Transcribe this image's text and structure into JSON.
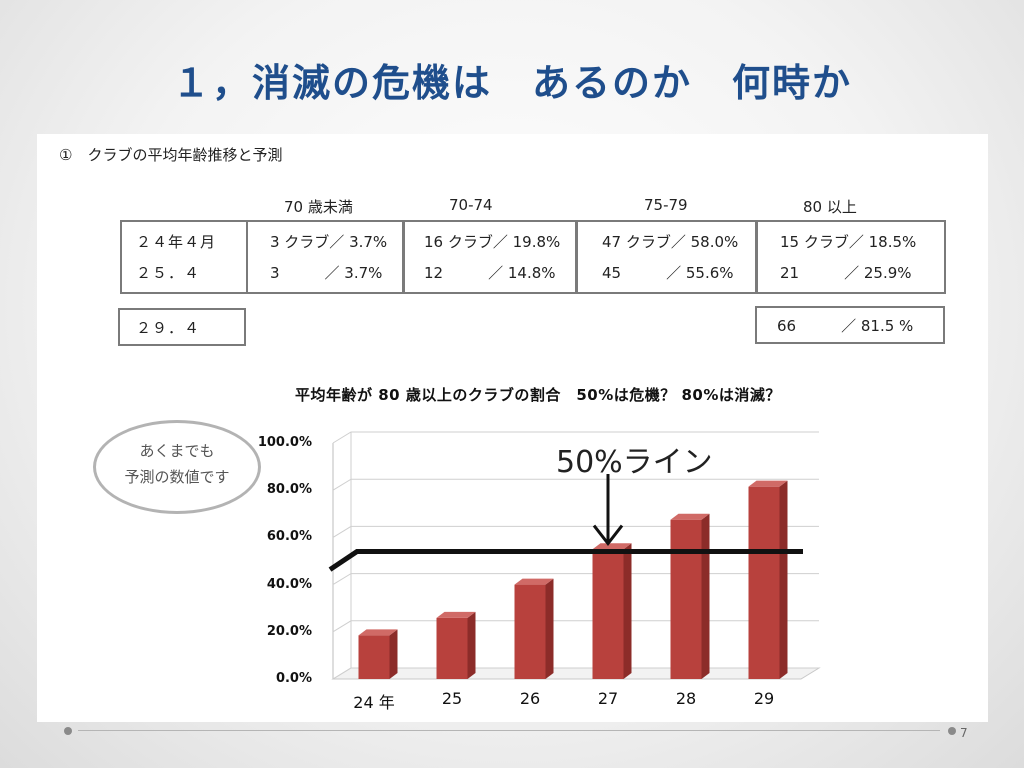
{
  "slide": {
    "title": "１，消滅の危機は　あるのか　何時か",
    "page_number": "7"
  },
  "section": {
    "subtitle": "①　クラブの平均年齢推移と予測"
  },
  "table": {
    "column_headers": [
      "70 歳未満",
      "70-74",
      "75-79",
      "80 以上"
    ],
    "rows": [
      {
        "label": "２４年４月",
        "cells": [
          "3 クラブ／ 3.7%",
          "16 クラブ／ 19.8%",
          "47 クラブ／ 58.0%",
          "15 クラブ／ 18.5%"
        ]
      },
      {
        "label": "２５．４",
        "cells": [
          "3　　　／ 3.7%",
          "12　　　／ 14.8%",
          "45　　　／ 55.6%",
          "21　　　／ 25.9%"
        ]
      }
    ],
    "forecast": {
      "label": "２９．４",
      "value": "66　　　／ 81.5 %"
    }
  },
  "note": {
    "line1": "あくまでも",
    "line2": "予測の数値です"
  },
  "chart_data": {
    "type": "bar",
    "title": "平均年齢が 80 歳以上のクラブの割合　50%は危機？ 80%は消滅？",
    "categories": [
      "24 年",
      "25",
      "26",
      "27",
      "28",
      "29"
    ],
    "values": [
      18.5,
      25.9,
      40.0,
      55.0,
      67.5,
      81.5
    ],
    "ylim": [
      0,
      100
    ],
    "yticks": [
      "0.0%",
      "20.0%",
      "40.0%",
      "60.0%",
      "80.0%",
      "100.0%"
    ],
    "grid": true,
    "bar_color": "#b8413d",
    "reference_line": {
      "label": "50%ライン",
      "value": 54
    }
  }
}
